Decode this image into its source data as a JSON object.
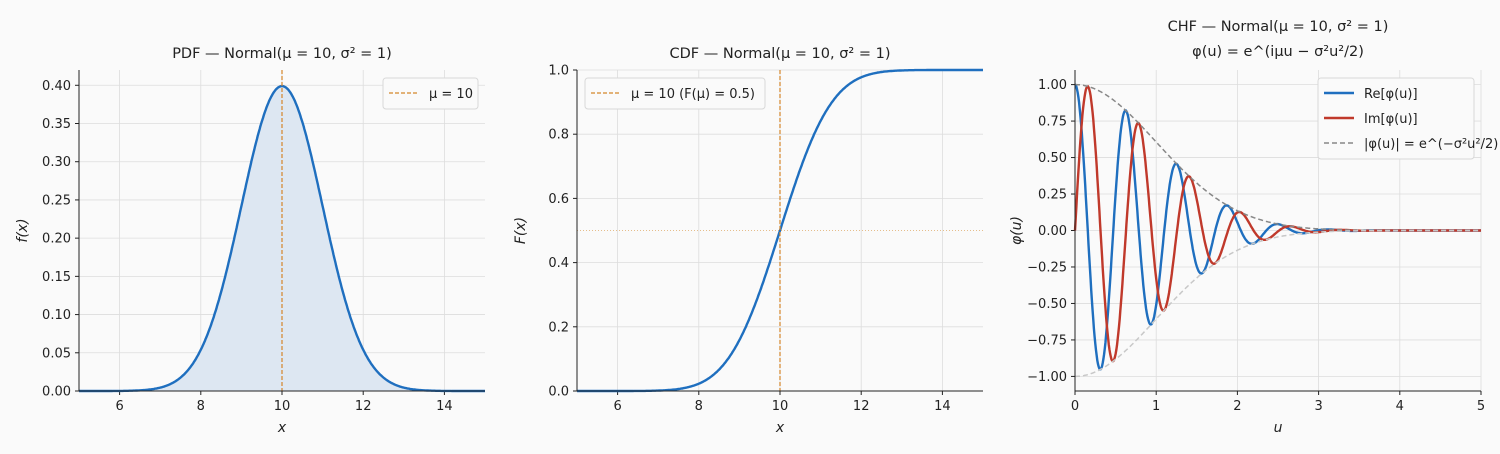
{
  "colors": {
    "blue": "#1f6fbf",
    "red": "#c0392b",
    "mean_line": "#d4862a",
    "envelope": "#888888",
    "envelope_lower": "#c8c8c8",
    "fill": "#dde7f2",
    "grid": "#dddddd"
  },
  "chart_data": [
    {
      "type": "area",
      "title": "PDF — Normal(μ = 10, σ² = 1)",
      "xlabel": "x",
      "ylabel": "f(x)",
      "xlim": [
        5,
        15
      ],
      "ylim": [
        0,
        0.42
      ],
      "xticks": [
        6,
        8,
        10,
        12,
        14
      ],
      "yticks": [
        0.0,
        0.05,
        0.1,
        0.15,
        0.2,
        0.25,
        0.3,
        0.35,
        0.4
      ],
      "ytick_labels": [
        "0.00",
        "0.05",
        "0.10",
        "0.15",
        "0.20",
        "0.25",
        "0.30",
        "0.35",
        "0.40"
      ],
      "grid": true,
      "distribution": {
        "name": "Normal",
        "mu": 10,
        "sigma2": 1
      },
      "series": [
        {
          "function": "pdf",
          "color": "#1f6fbf",
          "filled": true
        }
      ],
      "vline": {
        "x": 10,
        "legend": "μ = 10"
      },
      "legend_placement": "top-right"
    },
    {
      "type": "line",
      "title": "CDF — Normal(μ = 10, σ² = 1)",
      "xlabel": "x",
      "ylabel": "F(x)",
      "xlim": [
        5,
        15
      ],
      "ylim": [
        0,
        1
      ],
      "xticks": [
        6,
        8,
        10,
        12,
        14
      ],
      "yticks": [
        0,
        0.2,
        0.4,
        0.6,
        0.8,
        1.0
      ],
      "ytick_labels": [
        "0.0",
        "0.2",
        "0.4",
        "0.6",
        "0.8",
        "1.0"
      ],
      "grid": true,
      "distribution": {
        "name": "Normal",
        "mu": 10,
        "sigma2": 1
      },
      "series": [
        {
          "function": "cdf",
          "color": "#1f6fbf"
        }
      ],
      "vline": {
        "x": 10,
        "legend": "μ = 10  (F(μ) = 0.5)"
      },
      "hline": {
        "y": 0.5
      },
      "legend_placement": "top-left"
    },
    {
      "type": "line",
      "title": "CHF — Normal(μ = 10, σ² = 1)",
      "subtitle": "φ(u) = e^(iμu − σ²u²/2)",
      "xlabel": "u",
      "ylabel": "φ(u)",
      "xlim": [
        0,
        5
      ],
      "ylim": [
        -1.1,
        1.1
      ],
      "xticks": [
        0,
        1,
        2,
        3,
        4,
        5
      ],
      "yticks": [
        -1.0,
        -0.75,
        -0.5,
        -0.25,
        0,
        0.25,
        0.5,
        0.75,
        1.0
      ],
      "ytick_labels": [
        "−1.00",
        "−0.75",
        "−0.50",
        "−0.25",
        "0.00",
        "0.25",
        "0.50",
        "0.75",
        "1.00"
      ],
      "grid": true,
      "distribution": {
        "name": "Normal",
        "mu": 10,
        "sigma2": 1
      },
      "series": [
        {
          "name": "Re[φ(u)]",
          "function": "re",
          "color": "#1f6fbf"
        },
        {
          "name": "Im[φ(u)]",
          "function": "im",
          "color": "#c0392b"
        },
        {
          "name": "|φ(u)| = e^(−σ²u²/2)",
          "function": "mod",
          "color": "#888888",
          "dashed": true
        },
        {
          "function": "negmod",
          "color": "#c8c8c8",
          "dashed": true
        }
      ],
      "legend_placement": "top-right"
    }
  ]
}
